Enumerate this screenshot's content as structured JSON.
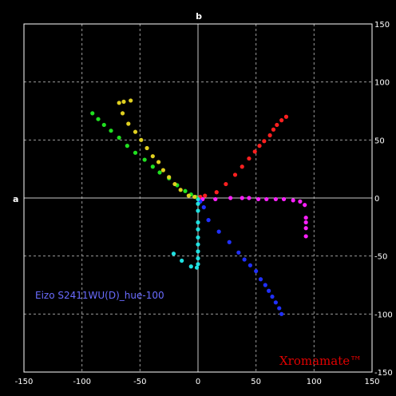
{
  "chart_data": {
    "type": "scatter",
    "title": "",
    "xlabel": "a",
    "ylabel": "b",
    "xlim": [
      -150,
      150
    ],
    "ylim": [
      -150,
      150
    ],
    "xticks": [
      -150,
      -100,
      -50,
      0,
      50,
      100,
      150
    ],
    "yticks": [
      -150,
      -100,
      -50,
      0,
      50,
      100,
      150
    ],
    "grid": true,
    "annotations": {
      "device": "Eizo S2411WU(D)_hue-100",
      "brand": "Xromamate™"
    },
    "series": [
      {
        "color": "#ff2020",
        "points": [
          [
            2,
            1
          ],
          [
            6,
            2
          ],
          [
            16,
            5
          ],
          [
            24,
            12
          ],
          [
            32,
            20
          ],
          [
            38,
            27
          ],
          [
            44,
            34
          ],
          [
            49,
            40
          ],
          [
            53,
            45
          ],
          [
            57,
            49
          ],
          [
            62,
            54
          ],
          [
            65,
            59
          ],
          [
            68,
            63
          ],
          [
            72,
            67
          ],
          [
            76,
            70
          ]
        ]
      },
      {
        "color": "#ff20ff",
        "points": [
          [
            4,
            -1
          ],
          [
            15,
            -1
          ],
          [
            28,
            0
          ],
          [
            38,
            0
          ],
          [
            44,
            0
          ],
          [
            52,
            -1
          ],
          [
            59,
            -1
          ],
          [
            67,
            -1
          ],
          [
            74,
            -1
          ],
          [
            82,
            -2
          ],
          [
            88,
            -3
          ],
          [
            92,
            -6
          ],
          [
            93,
            -17
          ],
          [
            93,
            -21
          ],
          [
            93,
            -26
          ],
          [
            93,
            -33
          ]
        ]
      },
      {
        "color": "#2030ff",
        "points": [
          [
            2,
            -3
          ],
          [
            5,
            -8
          ],
          [
            9,
            -19
          ],
          [
            18,
            -29
          ],
          [
            27,
            -38
          ],
          [
            35,
            -47
          ],
          [
            40,
            -53
          ],
          [
            45,
            -58
          ],
          [
            50,
            -63
          ],
          [
            54,
            -70
          ],
          [
            58,
            -75
          ],
          [
            61,
            -80
          ],
          [
            64,
            -85
          ],
          [
            67,
            -90
          ],
          [
            70,
            -95
          ],
          [
            72,
            -100
          ]
        ]
      },
      {
        "color": "#20e0e0",
        "points": [
          [
            0,
            -1
          ],
          [
            0,
            -5
          ],
          [
            0,
            -11
          ],
          [
            0,
            -21
          ],
          [
            0,
            -27
          ],
          [
            0,
            -34
          ],
          [
            0,
            -40
          ],
          [
            0,
            -46
          ],
          [
            0,
            -52
          ],
          [
            0,
            -57
          ],
          [
            -1,
            -60
          ],
          [
            -6,
            -59
          ],
          [
            -14,
            -54
          ],
          [
            -21,
            -48
          ]
        ]
      },
      {
        "color": "#20e020",
        "points": [
          [
            -91,
            73
          ],
          [
            -86,
            68
          ],
          [
            -81,
            63
          ],
          [
            -75,
            58
          ],
          [
            -68,
            52
          ],
          [
            -61,
            45
          ],
          [
            -54,
            39
          ],
          [
            -46,
            33
          ],
          [
            -39,
            27
          ],
          [
            -33,
            22
          ],
          [
            -25,
            17
          ],
          [
            -18,
            11
          ],
          [
            -11,
            6
          ],
          [
            -6,
            3
          ],
          [
            -2,
            1
          ]
        ]
      },
      {
        "color": "#e0d020",
        "points": [
          [
            -68,
            82
          ],
          [
            -64,
            83
          ],
          [
            -58,
            84
          ],
          [
            -65,
            73
          ],
          [
            -60,
            64
          ],
          [
            -54,
            57
          ],
          [
            -49,
            50
          ],
          [
            -44,
            43
          ],
          [
            -39,
            36
          ],
          [
            -34,
            31
          ],
          [
            -30,
            24
          ],
          [
            -25,
            18
          ],
          [
            -20,
            12
          ],
          [
            -15,
            7
          ],
          [
            -8,
            2
          ],
          [
            -3,
            1
          ]
        ]
      }
    ]
  }
}
